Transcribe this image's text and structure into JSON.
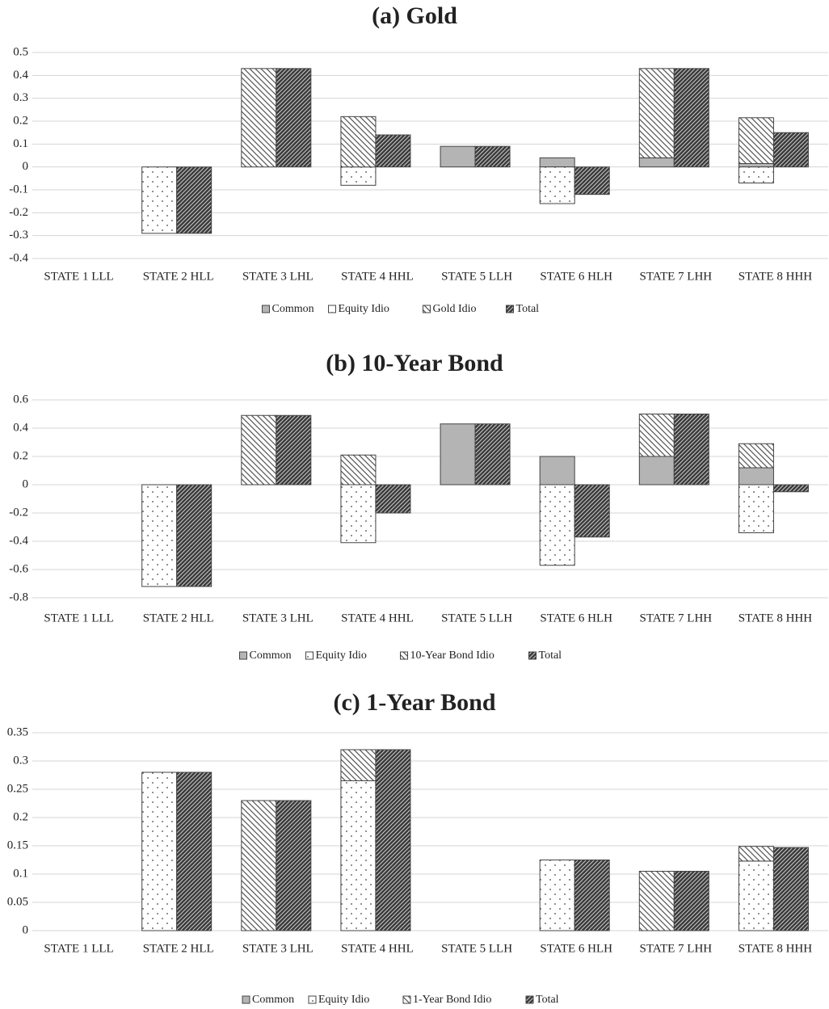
{
  "chart_data": [
    {
      "type": "bar",
      "title": "(a) Gold",
      "categories": [
        "STATE 1 LLL",
        "STATE 2 HLL",
        "STATE 3 LHL",
        "STATE 4 HHL",
        "STATE 5 LLH",
        "STATE 6 HLH",
        "STATE 7 LHH",
        "STATE 8 HHH"
      ],
      "series": [
        {
          "name": "Common",
          "color": "#b4b4b4",
          "pattern": "solid",
          "stack": "a",
          "values": [
            0,
            0,
            0,
            0,
            0.09,
            0.04,
            0.04,
            0.015
          ]
        },
        {
          "name": "Equity Idio",
          "color": "#555555",
          "pattern": "dots",
          "stack": "a",
          "values": [
            0,
            -0.29,
            0,
            -0.08,
            0,
            -0.16,
            0,
            -0.07
          ]
        },
        {
          "name": "Gold Idio",
          "color": "#555555",
          "pattern": "backslash",
          "stack": "a",
          "values": [
            0,
            0,
            0.43,
            0.22,
            0,
            0,
            0.39,
            0.2
          ]
        },
        {
          "name": "Total",
          "color": "#3a3a3a",
          "pattern": "slash",
          "stack": "b",
          "values": [
            0,
            -0.29,
            0.43,
            0.14,
            0.09,
            -0.12,
            0.43,
            0.15
          ]
        }
      ],
      "ylim": [
        -0.4,
        0.5
      ],
      "yticks": [
        -0.4,
        -0.3,
        -0.2,
        -0.1,
        0,
        0.1,
        0.2,
        0.3,
        0.4,
        0.5
      ],
      "grid": true
    },
    {
      "type": "bar",
      "title": "(b) 10-Year Bond",
      "categories": [
        "STATE 1 LLL",
        "STATE 2 HLL",
        "STATE 3 LHL",
        "STATE 4 HHL",
        "STATE 5 LLH",
        "STATE 6 HLH",
        "STATE 7 LHH",
        "STATE 8 HHH"
      ],
      "series": [
        {
          "name": "Common",
          "color": "#b4b4b4",
          "pattern": "solid",
          "stack": "a",
          "values": [
            0,
            0,
            0,
            0,
            0.43,
            0.2,
            0.2,
            0.12
          ]
        },
        {
          "name": "Equity Idio",
          "color": "#555555",
          "pattern": "dots",
          "stack": "a",
          "values": [
            0,
            -0.72,
            0,
            -0.41,
            0,
            -0.57,
            0,
            -0.34
          ]
        },
        {
          "name": "10-Year Bond Idio",
          "color": "#555555",
          "pattern": "backslash",
          "stack": "a",
          "values": [
            0,
            0,
            0.49,
            0.21,
            0,
            0,
            0.3,
            0.17
          ]
        },
        {
          "name": "Total",
          "color": "#3a3a3a",
          "pattern": "slash",
          "stack": "b",
          "values": [
            0,
            -0.72,
            0.49,
            -0.2,
            0.43,
            -0.37,
            0.5,
            -0.05
          ]
        }
      ],
      "ylim": [
        -0.8,
        0.6
      ],
      "yticks": [
        -0.8,
        -0.6,
        -0.4,
        -0.2,
        0,
        0.2,
        0.4,
        0.6
      ],
      "grid": true
    },
    {
      "type": "bar",
      "title": "(c) 1-Year Bond",
      "categories": [
        "STATE 1 LLL",
        "STATE 2 HLL",
        "STATE 3 LHL",
        "STATE 4 HHL",
        "STATE 5 LLH",
        "STATE 6 HLH",
        "STATE 7 LHH",
        "STATE 8 HHH"
      ],
      "series": [
        {
          "name": "Common",
          "color": "#b4b4b4",
          "pattern": "solid",
          "stack": "a",
          "values": [
            0,
            0,
            0,
            0,
            0,
            0,
            0,
            0
          ]
        },
        {
          "name": "Equity Idio",
          "color": "#555555",
          "pattern": "dots",
          "stack": "a",
          "values": [
            0,
            0.28,
            0,
            0.265,
            0,
            0.125,
            0,
            0.123
          ]
        },
        {
          "name": "1-Year Bond Idio",
          "color": "#555555",
          "pattern": "backslash",
          "stack": "a",
          "values": [
            0,
            0,
            0.23,
            0.055,
            0,
            0,
            0.105,
            0.026
          ]
        },
        {
          "name": "Total",
          "color": "#3a3a3a",
          "pattern": "slash",
          "stack": "b",
          "values": [
            0,
            0.28,
            0.23,
            0.32,
            0,
            0.125,
            0.105,
            0.147
          ]
        }
      ],
      "ylim": [
        0,
        0.35
      ],
      "yticks": [
        0,
        0.05,
        0.1,
        0.15,
        0.2,
        0.25,
        0.3,
        0.35
      ],
      "grid": true
    }
  ]
}
